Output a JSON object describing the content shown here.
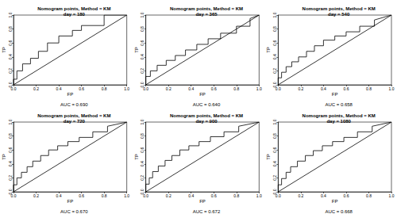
{
  "chart_data": [
    {
      "type": "line",
      "title": "Nomogram points, Method = KM",
      "subtitle": "day = 180",
      "x_label": "FP",
      "y_label": "TP",
      "annotation": "AUC = 0.690",
      "xlim": [
        0,
        1
      ],
      "ylim": [
        0,
        1
      ],
      "xticks": [
        {
          "value": 0,
          "label": "0.0"
        },
        0.2,
        0.4,
        0.6,
        0.8,
        {
          "value": 1,
          "label": "1.0"
        }
      ],
      "yticks": [
        {
          "value": 0,
          "label": "0.0"
        },
        0.2,
        0.4,
        0.6,
        0.8,
        {
          "value": 1,
          "label": "1.0"
        }
      ],
      "series": [
        {
          "color": "#000000",
          "x": [
            0,
            0,
            0.03,
            0.03,
            0.08,
            0.08,
            0.15,
            0.15,
            0.22,
            0.22,
            0.3,
            0.3,
            0.4,
            0.4,
            0.52,
            0.52,
            0.6,
            0.6,
            0.8,
            0.8,
            1
          ],
          "values": [
            0,
            0.08,
            0.08,
            0.2,
            0.2,
            0.3,
            0.3,
            0.38,
            0.38,
            0.48,
            0.48,
            0.6,
            0.6,
            0.7,
            0.7,
            0.78,
            0.78,
            0.85,
            0.85,
            1,
            1
          ]
        },
        {
          "color": "#000000",
          "x": [
            0,
            1
          ],
          "values": [
            0,
            1
          ]
        }
      ]
    },
    {
      "type": "line",
      "title": "Nomogram points, Method = KM",
      "subtitle": "day = 365",
      "x_label": "FP",
      "y_label": "TP",
      "annotation": "AUC = 0.640",
      "xlim": [
        0,
        1
      ],
      "ylim": [
        0,
        1
      ],
      "xticks": [
        {
          "value": 0,
          "label": "0.0"
        },
        0.2,
        0.4,
        0.6,
        0.8,
        {
          "value": 1,
          "label": "1.0"
        }
      ],
      "yticks": [
        {
          "value": 0,
          "label": "0.0"
        },
        0.2,
        0.4,
        0.6,
        0.8,
        {
          "value": 1,
          "label": "1.0"
        }
      ],
      "series": [
        {
          "color": "#000000",
          "x": [
            0,
            0,
            0.04,
            0.04,
            0.1,
            0.1,
            0.18,
            0.18,
            0.26,
            0.26,
            0.35,
            0.35,
            0.45,
            0.45,
            0.55,
            0.55,
            0.66,
            0.66,
            0.8,
            0.8,
            0.92,
            0.92,
            1
          ],
          "values": [
            0,
            0.12,
            0.12,
            0.2,
            0.2,
            0.28,
            0.28,
            0.35,
            0.35,
            0.42,
            0.42,
            0.5,
            0.5,
            0.58,
            0.58,
            0.66,
            0.66,
            0.74,
            0.74,
            0.84,
            0.84,
            0.95,
            1
          ]
        },
        {
          "color": "#000000",
          "x": [
            0,
            1
          ],
          "values": [
            0,
            1
          ]
        }
      ]
    },
    {
      "type": "line",
      "title": "Nomogram points, Method = KM",
      "subtitle": "day = 540",
      "x_label": "FP",
      "y_label": "TP",
      "annotation": "AUC = 0.658",
      "xlim": [
        0,
        1
      ],
      "ylim": [
        0,
        1
      ],
      "xticks": [
        {
          "value": 0,
          "label": "0.0"
        },
        0.2,
        0.4,
        0.6,
        0.8,
        {
          "value": 1,
          "label": "1.0"
        }
      ],
      "yticks": [
        {
          "value": 0,
          "label": "0.0"
        },
        0.2,
        0.4,
        0.6,
        0.8,
        {
          "value": 1,
          "label": "1.0"
        }
      ],
      "series": [
        {
          "color": "#000000",
          "x": [
            0,
            0,
            0.03,
            0.03,
            0.07,
            0.07,
            0.12,
            0.12,
            0.18,
            0.18,
            0.25,
            0.25,
            0.32,
            0.32,
            0.4,
            0.4,
            0.5,
            0.5,
            0.6,
            0.6,
            0.72,
            0.72,
            0.85,
            0.85,
            1
          ],
          "values": [
            0,
            0.1,
            0.1,
            0.18,
            0.18,
            0.26,
            0.26,
            0.33,
            0.33,
            0.4,
            0.4,
            0.48,
            0.48,
            0.56,
            0.56,
            0.64,
            0.64,
            0.7,
            0.7,
            0.76,
            0.76,
            0.84,
            0.84,
            0.93,
            1
          ]
        },
        {
          "color": "#000000",
          "x": [
            0,
            1
          ],
          "values": [
            0,
            1
          ]
        }
      ]
    },
    {
      "type": "line",
      "title": "Nomogram points, Method = KM",
      "subtitle": "day = 720",
      "x_label": "FP",
      "y_label": "TP",
      "annotation": "AUC = 0.670",
      "xlim": [
        0,
        1
      ],
      "ylim": [
        0,
        1
      ],
      "xticks": [
        {
          "value": 0,
          "label": "0.0"
        },
        0.2,
        0.4,
        0.6,
        0.8,
        {
          "value": 1,
          "label": "1.0"
        }
      ],
      "yticks": [
        {
          "value": 0,
          "label": "0.0"
        },
        0.2,
        0.4,
        0.6,
        0.8,
        {
          "value": 1,
          "label": "1.0"
        }
      ],
      "series": [
        {
          "color": "#000000",
          "x": [
            0,
            0,
            0.03,
            0.03,
            0.07,
            0.07,
            0.12,
            0.12,
            0.17,
            0.17,
            0.24,
            0.24,
            0.31,
            0.31,
            0.39,
            0.39,
            0.48,
            0.48,
            0.58,
            0.58,
            0.7,
            0.7,
            0.83,
            0.83,
            1
          ],
          "values": [
            0,
            0.1,
            0.1,
            0.2,
            0.2,
            0.28,
            0.28,
            0.36,
            0.36,
            0.44,
            0.44,
            0.52,
            0.52,
            0.6,
            0.6,
            0.66,
            0.66,
            0.72,
            0.72,
            0.78,
            0.78,
            0.86,
            0.86,
            0.94,
            1
          ]
        },
        {
          "color": "#000000",
          "x": [
            0,
            1
          ],
          "values": [
            0,
            1
          ]
        }
      ]
    },
    {
      "type": "line",
      "title": "Nomogram points, Method = KM",
      "subtitle": "day = 900",
      "x_label": "FP",
      "y_label": "TP",
      "annotation": "AUC = 0.672",
      "xlim": [
        0,
        1
      ],
      "ylim": [
        0,
        1
      ],
      "xticks": [
        {
          "value": 0,
          "label": "0.0"
        },
        0.2,
        0.4,
        0.6,
        0.8,
        {
          "value": 1,
          "label": "1.0"
        }
      ],
      "yticks": [
        {
          "value": 0,
          "label": "0.0"
        },
        0.2,
        0.4,
        0.6,
        0.8,
        {
          "value": 1,
          "label": "1.0"
        }
      ],
      "series": [
        {
          "color": "#000000",
          "x": [
            0,
            0,
            0.03,
            0.03,
            0.06,
            0.06,
            0.11,
            0.11,
            0.17,
            0.17,
            0.23,
            0.23,
            0.3,
            0.3,
            0.38,
            0.38,
            0.47,
            0.47,
            0.57,
            0.57,
            0.69,
            0.69,
            0.82,
            0.82,
            1
          ],
          "values": [
            0,
            0.11,
            0.11,
            0.2,
            0.2,
            0.29,
            0.29,
            0.37,
            0.37,
            0.45,
            0.45,
            0.52,
            0.52,
            0.6,
            0.6,
            0.66,
            0.66,
            0.72,
            0.72,
            0.79,
            0.79,
            0.86,
            0.86,
            0.94,
            1
          ]
        },
        {
          "color": "#000000",
          "x": [
            0,
            1
          ],
          "values": [
            0,
            1
          ]
        }
      ]
    },
    {
      "type": "line",
      "title": "Nomogram points, Method = KM",
      "subtitle": "day = 1080",
      "x_label": "FP",
      "y_label": "TP",
      "annotation": "AUC = 0.668",
      "xlim": [
        0,
        1
      ],
      "ylim": [
        0,
        1
      ],
      "xticks": [
        {
          "value": 0,
          "label": "0.0"
        },
        0.2,
        0.4,
        0.6,
        0.8,
        {
          "value": 1,
          "label": "1.0"
        }
      ],
      "yticks": [
        {
          "value": 0,
          "label": "0.0"
        },
        0.2,
        0.4,
        0.6,
        0.8,
        {
          "value": 1,
          "label": "1.0"
        }
      ],
      "series": [
        {
          "color": "#000000",
          "x": [
            0,
            0,
            0.03,
            0.03,
            0.07,
            0.07,
            0.11,
            0.11,
            0.17,
            0.17,
            0.24,
            0.24,
            0.31,
            0.31,
            0.39,
            0.39,
            0.48,
            0.48,
            0.58,
            0.58,
            0.7,
            0.7,
            0.83,
            0.83,
            1
          ],
          "values": [
            0,
            0.1,
            0.1,
            0.19,
            0.19,
            0.28,
            0.28,
            0.36,
            0.36,
            0.44,
            0.44,
            0.52,
            0.52,
            0.59,
            0.59,
            0.66,
            0.66,
            0.72,
            0.72,
            0.78,
            0.78,
            0.86,
            0.86,
            0.94,
            1
          ]
        },
        {
          "color": "#000000",
          "x": [
            0,
            1
          ],
          "values": [
            0,
            1
          ]
        }
      ]
    }
  ]
}
